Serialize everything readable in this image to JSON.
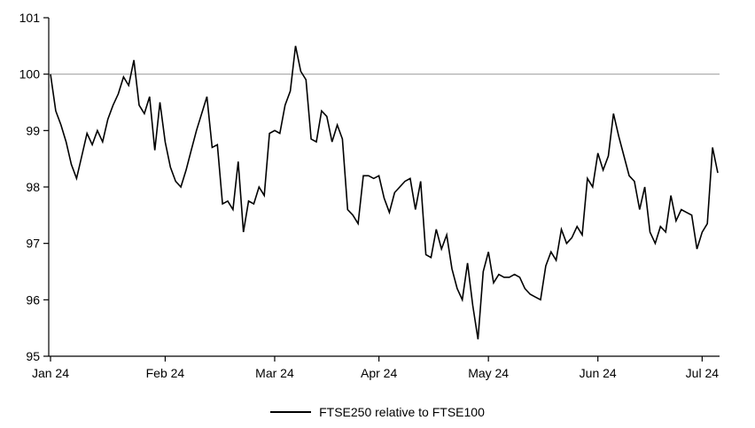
{
  "chart_data": {
    "type": "line",
    "title": "",
    "xlabel": "",
    "ylabel": "",
    "ylim": [
      95,
      101
    ],
    "y_ticks": [
      95,
      96,
      97,
      98,
      99,
      100,
      101
    ],
    "x_tick_labels": [
      "Jan 24",
      "Feb 24",
      "Mar 24",
      "Apr 24",
      "May 24",
      "Jun 24",
      "Jul 24"
    ],
    "x_tick_indices": [
      0,
      22,
      43,
      63,
      84,
      105,
      125
    ],
    "grid": false,
    "legend_position": "bottom",
    "reference_line": 100,
    "reference_line_color": "#a6a6a6",
    "axis_color": "#000000",
    "background_color": "#ffffff",
    "series": [
      {
        "name": "FTSE250 relative to FTSE100",
        "color": "#000000",
        "values": [
          100.0,
          99.35,
          99.1,
          98.8,
          98.4,
          98.15,
          98.55,
          98.95,
          98.75,
          99.0,
          98.8,
          99.2,
          99.45,
          99.65,
          99.95,
          99.8,
          100.25,
          99.45,
          99.3,
          99.6,
          98.65,
          99.5,
          98.8,
          98.35,
          98.1,
          98.0,
          98.3,
          98.65,
          99.0,
          99.3,
          99.6,
          98.7,
          98.75,
          97.7,
          97.75,
          97.6,
          98.45,
          97.2,
          97.75,
          97.7,
          98.0,
          97.85,
          98.95,
          99.0,
          98.95,
          99.45,
          99.7,
          100.5,
          100.05,
          99.9,
          98.85,
          98.8,
          99.35,
          99.25,
          98.8,
          99.1,
          98.85,
          97.6,
          97.5,
          97.35,
          98.2,
          98.2,
          98.15,
          98.2,
          97.8,
          97.55,
          97.9,
          98.0,
          98.1,
          98.15,
          97.6,
          98.1,
          96.8,
          96.75,
          97.25,
          96.9,
          97.15,
          96.55,
          96.2,
          96.0,
          96.65,
          95.9,
          95.3,
          96.5,
          96.85,
          96.3,
          96.45,
          96.4,
          96.4,
          96.45,
          96.4,
          96.2,
          96.1,
          96.05,
          96.0,
          96.6,
          96.85,
          96.7,
          97.25,
          97.0,
          97.1,
          97.3,
          97.15,
          98.15,
          98.0,
          98.6,
          98.3,
          98.55,
          99.3,
          98.9,
          98.55,
          98.2,
          98.1,
          97.6,
          98.0,
          97.2,
          97.0,
          97.3,
          97.2,
          97.85,
          97.4,
          97.6,
          97.55,
          97.5,
          96.9,
          97.2,
          97.35,
          98.7,
          98.25
        ]
      }
    ]
  }
}
